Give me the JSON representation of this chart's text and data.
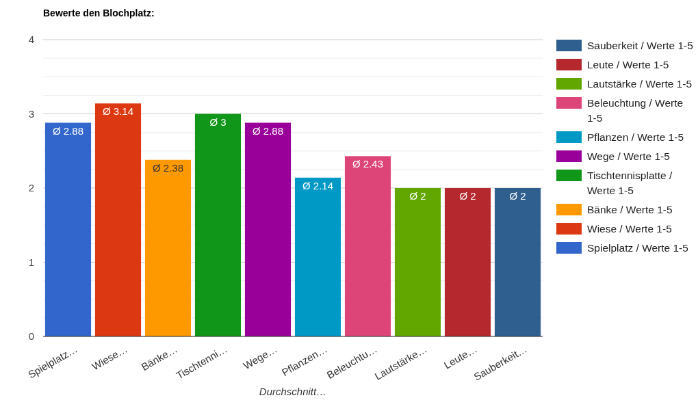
{
  "chart_data": {
    "type": "bar",
    "title": "Bewerte den Blochplatz:",
    "xlabel": "Durchschnitt…",
    "categories": [
      "Spielplatz…",
      "Wiese…",
      "Bänke…",
      "Tischtenni…",
      "Wege…",
      "Pflanzen…",
      "Beleuchtu…",
      "Lautstärke…",
      "Leute…",
      "Sauberkeit…"
    ],
    "series": [
      {
        "name": "Sauberkeit / Werte 1-5",
        "color": "#2f5f8f",
        "values": [
          null,
          null,
          null,
          null,
          null,
          null,
          null,
          null,
          null,
          2
        ],
        "value_labels": [
          null,
          null,
          null,
          null,
          null,
          null,
          null,
          null,
          null,
          "Ø 2"
        ]
      },
      {
        "name": "Leute / Werte 1-5",
        "color": "#b5282e",
        "values": [
          null,
          null,
          null,
          null,
          null,
          null,
          null,
          null,
          2,
          null
        ],
        "value_labels": [
          null,
          null,
          null,
          null,
          null,
          null,
          null,
          null,
          "Ø 2",
          null
        ]
      },
      {
        "name": "Lautstärke / Werte 1-5",
        "color": "#62a700",
        "values": [
          null,
          null,
          null,
          null,
          null,
          null,
          null,
          2,
          null,
          null
        ],
        "value_labels": [
          null,
          null,
          null,
          null,
          null,
          null,
          null,
          "Ø 2",
          null,
          null
        ]
      },
      {
        "name": "Beleuchtung / Werte 1-5",
        "color": "#dd4477",
        "values": [
          null,
          null,
          null,
          null,
          null,
          null,
          2.43,
          null,
          null,
          null
        ],
        "value_labels": [
          null,
          null,
          null,
          null,
          null,
          null,
          "Ø 2.43",
          null,
          null,
          null
        ]
      },
      {
        "name": "Pflanzen / Werte 1-5",
        "color": "#0099c6",
        "values": [
          null,
          null,
          null,
          null,
          null,
          2.14,
          null,
          null,
          null,
          null
        ],
        "value_labels": [
          null,
          null,
          null,
          null,
          null,
          "Ø 2.14",
          null,
          null,
          null,
          null
        ]
      },
      {
        "name": "Wege / Werte 1-5",
        "color": "#990099",
        "values": [
          null,
          null,
          null,
          null,
          2.88,
          null,
          null,
          null,
          null,
          null
        ],
        "value_labels": [
          null,
          null,
          null,
          null,
          "Ø 2.88",
          null,
          null,
          null,
          null,
          null
        ]
      },
      {
        "name": "Tischtennisplatte / Werte 1-5",
        "color": "#109618",
        "values": [
          null,
          null,
          null,
          3,
          null,
          null,
          null,
          null,
          null,
          null
        ],
        "value_labels": [
          null,
          null,
          null,
          "Ø 3",
          null,
          null,
          null,
          null,
          null,
          null
        ]
      },
      {
        "name": "Bänke / Werte 1-5",
        "color": "#ff9900",
        "values": [
          null,
          null,
          2.38,
          null,
          null,
          null,
          null,
          null,
          null,
          null
        ],
        "value_labels": [
          null,
          null,
          "Ø 2.38",
          null,
          null,
          null,
          null,
          null,
          null,
          null
        ]
      },
      {
        "name": "Wiese / Werte 1-5",
        "color": "#dc3912",
        "values": [
          null,
          3.14,
          null,
          null,
          null,
          null,
          null,
          null,
          null,
          null
        ],
        "value_labels": [
          null,
          "Ø 3.14",
          null,
          null,
          null,
          null,
          null,
          null,
          null,
          null
        ]
      },
      {
        "name": "Spielplatz / Werte 1-5",
        "color": "#3366cc",
        "values": [
          2.88,
          null,
          null,
          null,
          null,
          null,
          null,
          null,
          null,
          null
        ],
        "value_labels": [
          "Ø 2.88",
          null,
          null,
          null,
          null,
          null,
          null,
          null,
          null,
          null
        ]
      }
    ],
    "ylim": [
      0,
      4
    ],
    "yticks": [
      0,
      {
        "value": 0.25,
        "label": null
      },
      {
        "value": 0.5,
        "label": null
      },
      {
        "value": 0.75,
        "label": null
      },
      1,
      {
        "value": 1.25,
        "label": null
      },
      {
        "value": 1.5,
        "label": null
      },
      {
        "value": 1.75,
        "label": null
      },
      2,
      {
        "value": 2.25,
        "label": null
      },
      {
        "value": 2.5,
        "label": null
      },
      {
        "value": 2.75,
        "label": null
      },
      3,
      {
        "value": 3.25,
        "label": null
      },
      {
        "value": 3.5,
        "label": null
      },
      {
        "value": 3.75,
        "label": null
      },
      4
    ],
    "grid": "y",
    "legend": "right"
  }
}
